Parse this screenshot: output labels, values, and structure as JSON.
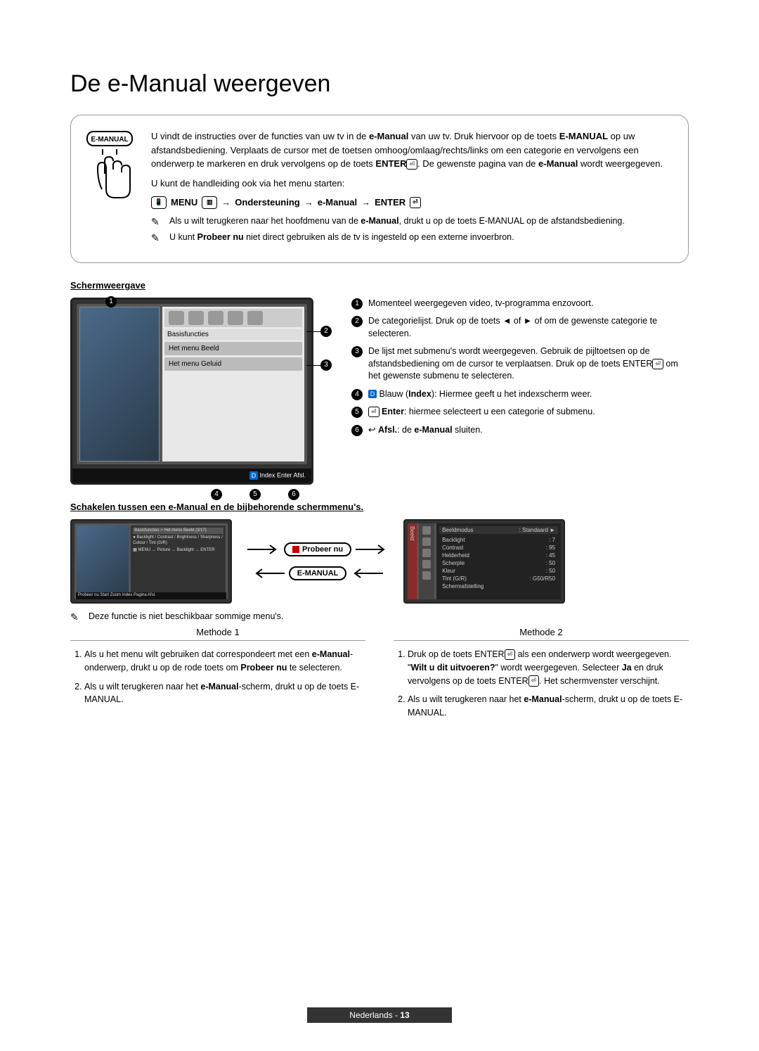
{
  "title": "De e-Manual weergeven",
  "intro": {
    "p1a": "U vindt de instructies over de functies van uw tv in de ",
    "p1b": "e-Manual",
    "p1c": " van uw tv. Druk hiervoor op de toets ",
    "p1d": "E-MANUAL",
    "p1e": " op uw afstandsbediening. Verplaats de cursor met de toetsen omhoog/omlaag/rechts/links om een categorie en vervolgens een onderwerp te markeren en druk vervolgens op de toets ",
    "p1f": "ENTER",
    "p1g": ". De gewenste pagina van de ",
    "p1h": "e-Manual",
    "p1i": " wordt weergegeven.",
    "p2": "U kunt de handleiding ook via het menu starten:",
    "path": {
      "menu": "MENU",
      "seg1": "Ondersteuning",
      "seg2": "e-Manual",
      "enter": "ENTER"
    },
    "note1a": "Als u wilt terugkeren naar het hoofdmenu van de ",
    "note1b": "e-Manual",
    "note1c": ",  drukt u op de toets ",
    "note1d": "E-MANUAL",
    "note1e": " op de afstandsbediening.",
    "note2a": "U kunt ",
    "note2b": "Probeer nu",
    "note2c": " niet direct gebruiken als de tv is ingesteld op een externe invoerbron."
  },
  "button_label": "E-MANUAL",
  "schermweergave": {
    "title": "Schermweergave",
    "tv": {
      "cat_label": "Basisfuncties",
      "menu1": "Het menu Beeld",
      "menu2": "Het menu Geluid",
      "bottom": "Index    Enter    Afsl."
    },
    "legend": {
      "i1": "Momenteel weergegeven video, tv-programma enzovoort.",
      "i2": "De categorielijst. Druk op de toets ◄ of ►  of om de gewenste categorie te selecteren.",
      "i3a": "De lijst met submenu's wordt weergegeven. Gebruik de pijltoetsen op de afstandsbediening om de cursor te verplaatsen. Druk op de toets ",
      "i3b": "ENTER",
      "i3c": " om het gewenste submenu te selecteren.",
      "i4a": "Blauw (",
      "i4b": "Index",
      "i4c": "): Hiermee geeft u  het indexscherm weer.",
      "i5a": "Enter",
      "i5b": ": hiermee selecteert u een categorie of submenu.",
      "i6a": "Afsl.",
      "i6b": ": de ",
      "i6c": "e-Manual",
      "i6d": " sluiten."
    }
  },
  "switching": {
    "title": "Schakelen tussen een e-Manual en de bijbehorende schermmenu's.",
    "probeer_nu": "Probeer nu",
    "emanual_btn": "E-MANUAL",
    "mini_header": "Basisfuncties > Het menu Beeld (3/17)",
    "mini_line1": "Backlight / Contrast / Brightness / Sharpness / Colour / Tint (G/R)",
    "mini_path": "MENU → Picture → Backlight → ENTER",
    "mini_bottom": "Probeer nu   Start   Zoom   Index   Pagina   Afsl.",
    "settings": {
      "tab": "Beeld",
      "hdr_label": "Beeldmodus",
      "hdr_val": ": Standaard",
      "rows": [
        {
          "k": "Backlight",
          "v": ": 7"
        },
        {
          "k": "Contrast",
          "v": ": 95"
        },
        {
          "k": "Helderheid",
          "v": ": 45"
        },
        {
          "k": "Scherpte",
          "v": ": 50"
        },
        {
          "k": "Kleur",
          "v": ": 50"
        },
        {
          "k": "Tint (G/R)",
          "v": ": G50/R50"
        },
        {
          "k": "Schermafstelling",
          "v": ""
        }
      ]
    },
    "note": "Deze functie is niet beschikbaar sommige menu's."
  },
  "methods": {
    "m1_title": "Methode 1",
    "m2_title": "Methode 2",
    "m1": {
      "s1a": "Als u het menu wilt gebruiken dat correspondeert met een ",
      "s1b": "e-Manual",
      "s1c": "-onderwerp, drukt u op de rode toets om ",
      "s1d": "Probeer nu",
      "s1e": " te selecteren.",
      "s2a": "Als u wilt terugkeren naar het ",
      "s2b": "e-Manual",
      "s2c": "-scherm, drukt u op de toets ",
      "s2d": "E-MANUAL",
      "s2e": "."
    },
    "m2": {
      "s1a": "Druk op de toets ",
      "s1b": "ENTER",
      "s1c": " als een onderwerp wordt weergegeven. \"",
      "s1d": "Wilt u dit uitvoeren?",
      "s1e": "\" wordt weergegeven. Selecteer ",
      "s1f": "Ja",
      "s1g": " en druk vervolgens op de toets ",
      "s1h": "ENTER",
      "s1i": ". Het schermvenster verschijnt.",
      "s2a": "Als u wilt terugkeren naar het ",
      "s2b": "e-Manual",
      "s2c": "-scherm, drukt u op de toets ",
      "s2d": "E-MANUAL",
      "s2e": "."
    }
  },
  "footer": {
    "lang": "Nederlands",
    "page": "13"
  }
}
